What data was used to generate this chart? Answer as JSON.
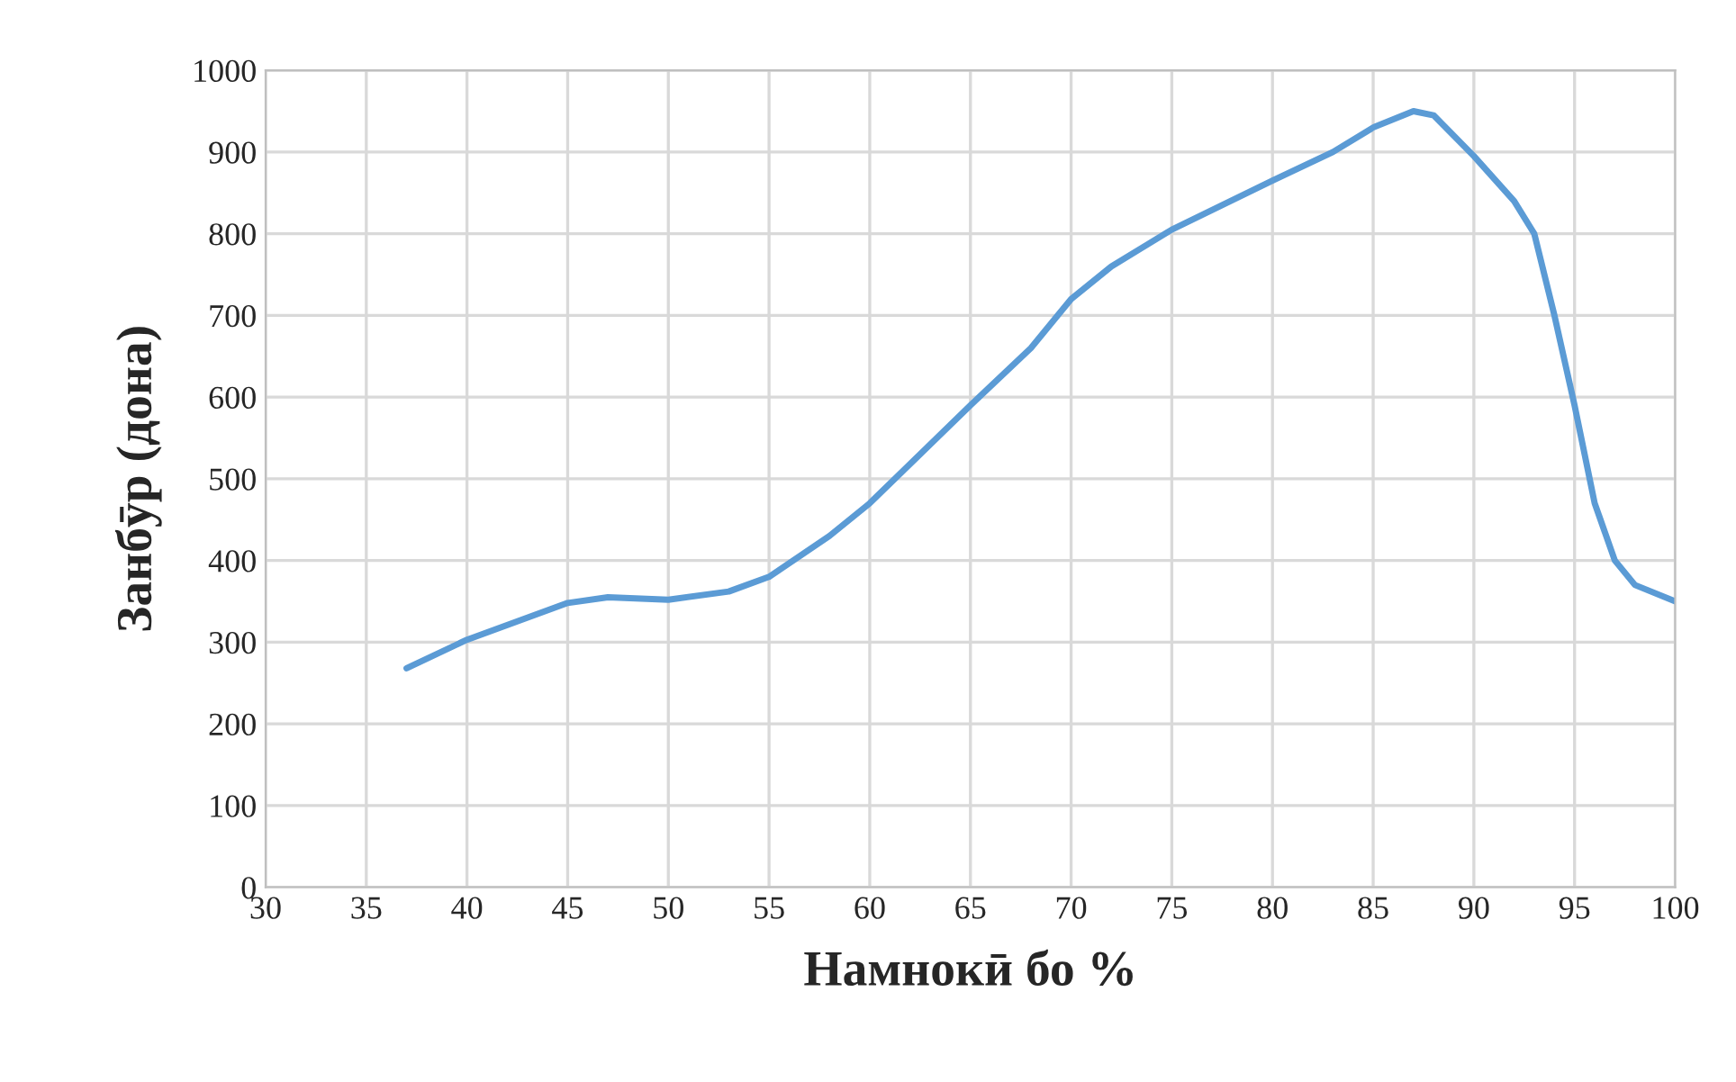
{
  "chart_data": {
    "type": "line",
    "xlabel": "Намнокӣ бо %",
    "ylabel": "Занбӯр (дона)",
    "x": [
      37,
      40,
      45,
      47,
      50,
      53,
      55,
      58,
      60,
      65,
      68,
      70,
      72,
      75,
      80,
      83,
      85,
      87,
      88,
      90,
      92,
      93,
      94,
      95,
      96,
      97,
      98,
      100
    ],
    "series": [
      {
        "color": "#5b9bd5",
        "values": [
          268,
          303,
          348,
          355,
          352,
          362,
          380,
          430,
          470,
          590,
          660,
          720,
          760,
          805,
          865,
          900,
          930,
          950,
          945,
          895,
          840,
          800,
          700,
          590,
          470,
          400,
          370,
          350
        ]
      }
    ],
    "xlim": [
      30,
      100
    ],
    "xticks": [
      30,
      35,
      40,
      45,
      50,
      55,
      60,
      65,
      70,
      75,
      80,
      85,
      90,
      95,
      100
    ],
    "ylim": [
      0,
      1000
    ],
    "yticks": [
      0,
      100,
      200,
      300,
      400,
      500,
      600,
      700,
      800,
      900,
      1000
    ],
    "grid": true,
    "legend": false,
    "marker": "none",
    "line_style": "solid"
  }
}
